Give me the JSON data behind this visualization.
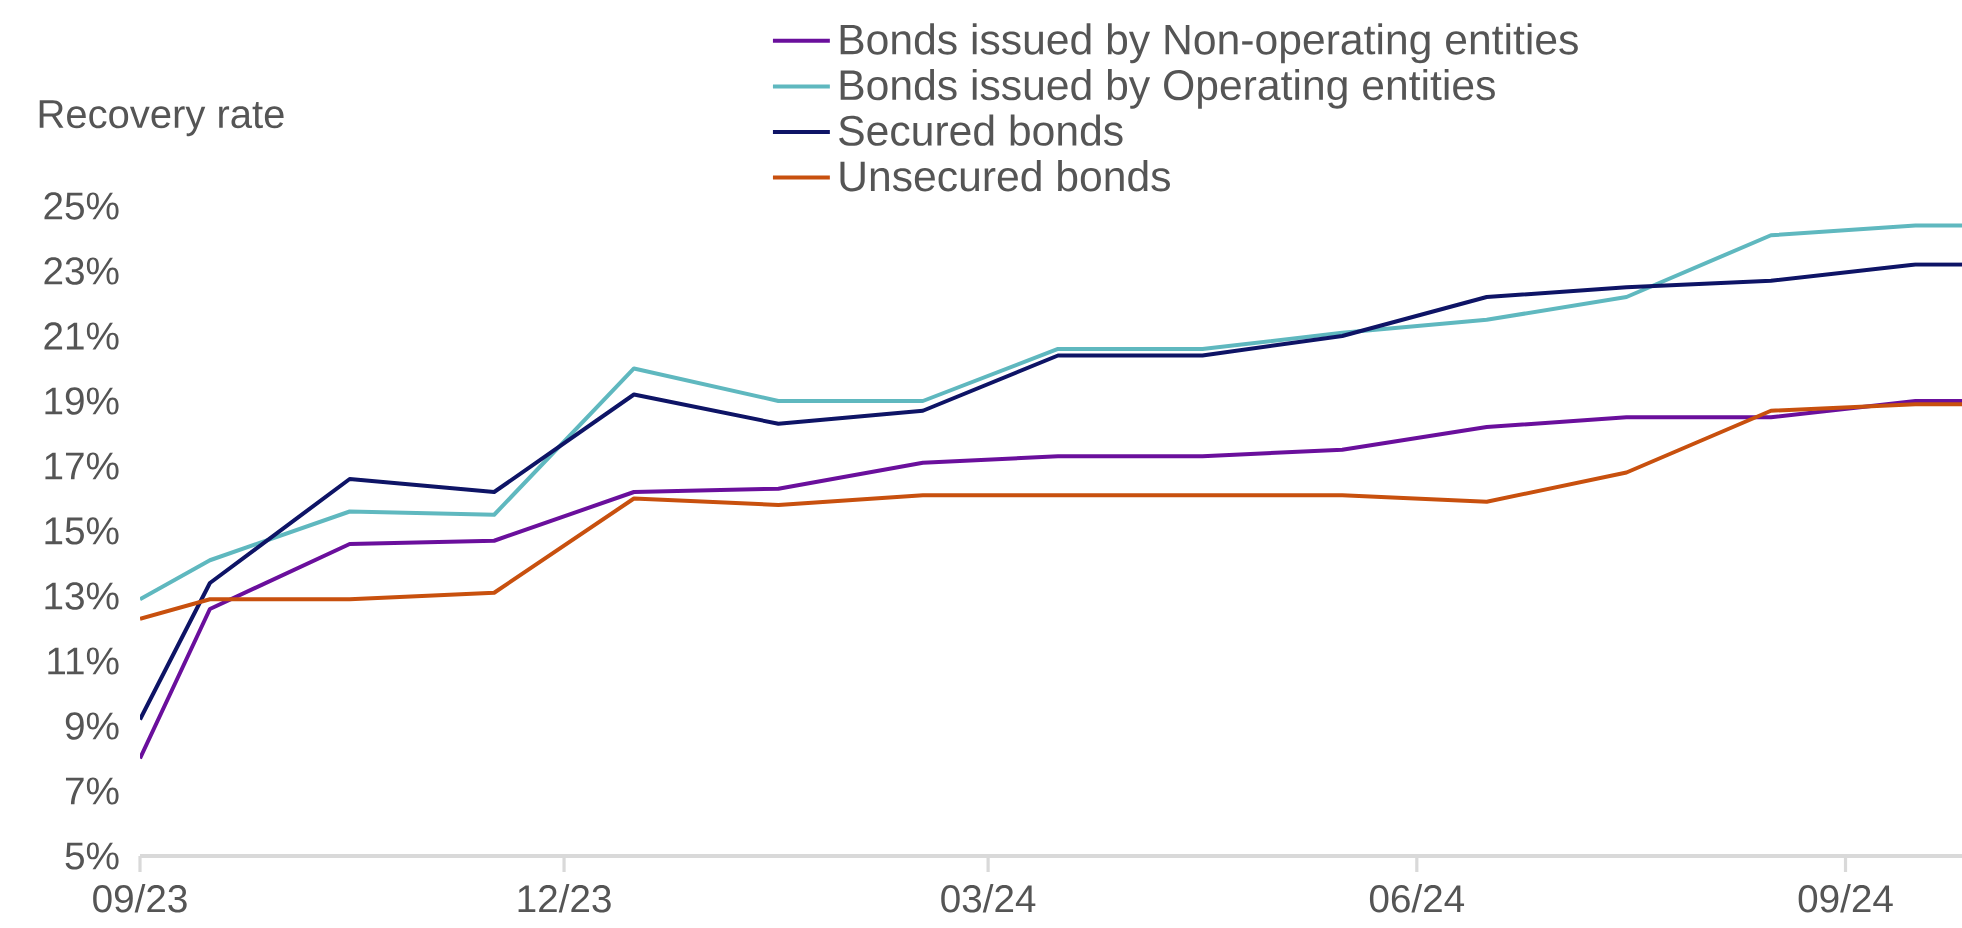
{
  "chart_data": {
    "type": "line",
    "ylabel": "Recovery rate",
    "x": [
      "2023-09-01",
      "2023-09-16",
      "2023-10-16",
      "2023-11-16",
      "2023-12-16",
      "2024-01-16",
      "2024-02-16",
      "2024-03-16",
      "2024-04-16",
      "2024-05-16",
      "2024-06-16",
      "2024-07-16",
      "2024-08-16",
      "2024-09-16",
      "2024-09-26"
    ],
    "series": [
      {
        "name": "Bonds issued by Non-operating entities",
        "color": "#6a0f9c",
        "values": [
          8.0,
          12.6,
          14.6,
          14.7,
          16.2,
          16.3,
          17.1,
          17.3,
          17.3,
          17.5,
          18.2,
          18.5,
          18.5,
          19.0,
          19.0
        ]
      },
      {
        "name": "Bonds issued by Operating entities",
        "color": "#5fb8bf",
        "values": [
          12.9,
          14.1,
          15.6,
          15.5,
          20.0,
          19.0,
          19.0,
          20.6,
          20.6,
          21.1,
          21.5,
          22.2,
          24.1,
          24.4,
          24.4
        ]
      },
      {
        "name": "Secured bonds",
        "color": "#0e1466",
        "values": [
          9.2,
          13.4,
          16.6,
          16.2,
          19.2,
          18.3,
          18.7,
          20.4,
          20.4,
          21.0,
          22.2,
          22.5,
          22.7,
          23.2,
          23.2
        ]
      },
      {
        "name": "Unsecured bonds",
        "color": "#c8500e",
        "values": [
          12.3,
          12.9,
          12.9,
          13.1,
          16.0,
          15.8,
          16.1,
          16.1,
          16.1,
          16.1,
          15.9,
          16.8,
          18.7,
          18.9,
          18.9
        ]
      }
    ],
    "xlim": [
      "2023-09-01",
      "2024-09-26"
    ],
    "ylim": [
      5,
      25
    ],
    "xticks": [
      {
        "value": "2023-09",
        "label": "09/23"
      },
      {
        "value": "2023-12",
        "label": "12/23"
      },
      {
        "value": "2024-03",
        "label": "03/24"
      },
      {
        "value": "2024-06",
        "label": "06/24"
      },
      {
        "value": "2024-09",
        "label": "09/24"
      }
    ],
    "yticks": [
      {
        "value": 5,
        "label": "5%"
      },
      {
        "value": 7,
        "label": "7%"
      },
      {
        "value": 9,
        "label": "9%"
      },
      {
        "value": 11,
        "label": "11%"
      },
      {
        "value": 13,
        "label": "13%"
      },
      {
        "value": 15,
        "label": "15%"
      },
      {
        "value": 17,
        "label": "17%"
      },
      {
        "value": 19,
        "label": "19%"
      },
      {
        "value": 21,
        "label": "21%"
      },
      {
        "value": 23,
        "label": "23%"
      },
      {
        "value": 25,
        "label": "25%"
      }
    ],
    "legend": "top"
  }
}
